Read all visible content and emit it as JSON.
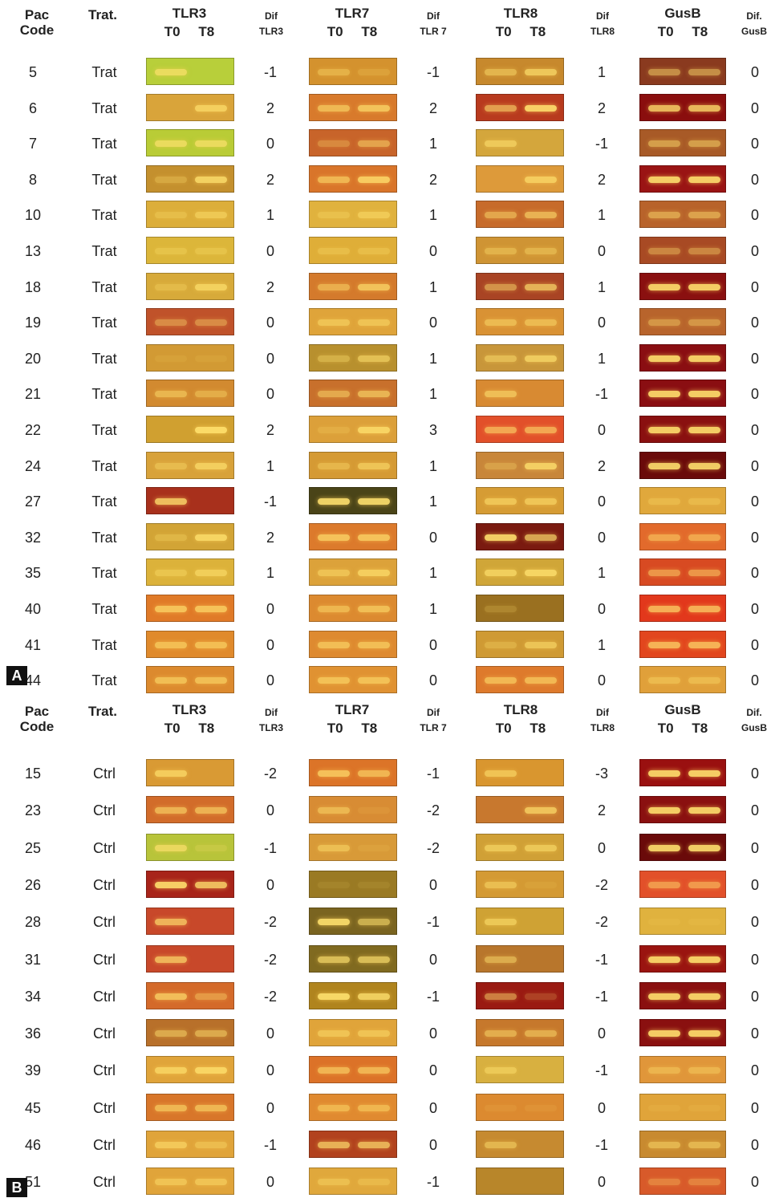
{
  "panels": [
    {
      "label": "A",
      "headers": {
        "pac": "Pac",
        "code": "Code",
        "trat": "Trat.",
        "genes": [
          "TLR3",
          "TLR7",
          "TLR8",
          "GusB"
        ],
        "t0": "T0",
        "t8": "T8",
        "difs": [
          {
            "top": "Dif",
            "sub": "TLR3"
          },
          {
            "top": "Dif",
            "sub": "TLR 7"
          },
          {
            "top": "Dif",
            "sub": "TLR8"
          },
          {
            "top": "Dif.",
            "sub": "GusB"
          }
        ]
      },
      "rows": [
        {
          "code": "5",
          "trat": "Trat",
          "dif": [
            "-1",
            "-1",
            "1",
            "0"
          ],
          "bg": [
            "#b8cf3a",
            "#d4922e",
            "#c7892d",
            "#8a3a1f"
          ],
          "t0": [
            0.7,
            0.4,
            0.5,
            0.5
          ],
          "t8": [
            0.0,
            0.2,
            0.7,
            0.5
          ]
        },
        {
          "code": "6",
          "trat": "Trat",
          "dif": [
            "2",
            "2",
            "2",
            "0"
          ],
          "bg": [
            "#d9a43a",
            "#d87a2c",
            "#b83a1e",
            "#8a0e0e"
          ],
          "t0": [
            0.0,
            0.6,
            0.6,
            0.8
          ],
          "t8": [
            0.7,
            0.7,
            0.9,
            0.8
          ]
        },
        {
          "code": "7",
          "trat": "Trat",
          "dif": [
            "0",
            "1",
            "-1",
            "0"
          ],
          "bg": [
            "#b9cc36",
            "#c8642a",
            "#d4a63c",
            "#a85a27"
          ],
          "t0": [
            0.7,
            0.3,
            0.6,
            0.5
          ],
          "t8": [
            0.7,
            0.5,
            0.0,
            0.5
          ]
        },
        {
          "code": "8",
          "trat": "Trat",
          "dif": [
            "2",
            "2",
            "2",
            "0"
          ],
          "bg": [
            "#c4902e",
            "#d9752a",
            "#dd9a3a",
            "#9a1414"
          ],
          "t0": [
            0.3,
            0.6,
            0.0,
            0.9
          ],
          "t8": [
            0.8,
            0.8,
            0.7,
            0.9
          ]
        },
        {
          "code": "10",
          "trat": "Trat",
          "dif": [
            "1",
            "1",
            "1",
            "0"
          ],
          "bg": [
            "#dcae3a",
            "#e0b23e",
            "#c76b2b",
            "#b8632b"
          ],
          "t0": [
            0.3,
            0.3,
            0.5,
            0.5
          ],
          "t8": [
            0.5,
            0.5,
            0.6,
            0.5
          ]
        },
        {
          "code": "13",
          "trat": "Trat",
          "dif": [
            "0",
            "0",
            "0",
            "0"
          ],
          "bg": [
            "#dcb63a",
            "#dfae38",
            "#cf9434",
            "#a84a24"
          ],
          "t0": [
            0.3,
            0.3,
            0.4,
            0.4
          ],
          "t8": [
            0.3,
            0.3,
            0.4,
            0.4
          ]
        },
        {
          "code": "18",
          "trat": "Trat",
          "dif": [
            "2",
            "1",
            "1",
            "0"
          ],
          "bg": [
            "#d7aa3a",
            "#d47a2c",
            "#a94424",
            "#8a1010"
          ],
          "t0": [
            0.3,
            0.5,
            0.5,
            0.9
          ],
          "t8": [
            0.7,
            0.7,
            0.7,
            0.9
          ]
        },
        {
          "code": "19",
          "trat": "Trat",
          "dif": [
            "0",
            "0",
            "0",
            "0"
          ],
          "bg": [
            "#c0522a",
            "#dfa43a",
            "#d99234",
            "#b8642c"
          ],
          "t0": [
            0.4,
            0.5,
            0.5,
            0.4
          ],
          "t8": [
            0.4,
            0.5,
            0.5,
            0.4
          ]
        },
        {
          "code": "20",
          "trat": "Trat",
          "dif": [
            "0",
            "1",
            "1",
            "0"
          ],
          "bg": [
            "#d29a34",
            "#b8902e",
            "#c8963a",
            "#8a0e12"
          ],
          "t0": [
            0.1,
            0.4,
            0.5,
            0.9
          ],
          "t8": [
            0.1,
            0.6,
            0.7,
            0.9
          ]
        },
        {
          "code": "21",
          "trat": "Trat",
          "dif": [
            "0",
            "1",
            "-1",
            "0"
          ],
          "bg": [
            "#d28a30",
            "#c8702c",
            "#d88a32",
            "#8a0e12"
          ],
          "t0": [
            0.5,
            0.5,
            0.6,
            0.9
          ],
          "t8": [
            0.4,
            0.6,
            0.0,
            0.9
          ]
        },
        {
          "code": "22",
          "trat": "Trat",
          "dif": [
            "2",
            "3",
            "0",
            "0"
          ],
          "bg": [
            "#d0a030",
            "#dca03a",
            "#e2502a",
            "#8a1010"
          ],
          "t0": [
            0.0,
            0.2,
            0.6,
            0.9
          ],
          "t8": [
            0.9,
            0.8,
            0.6,
            0.9
          ]
        },
        {
          "code": "24",
          "trat": "Trat",
          "dif": [
            "1",
            "1",
            "2",
            "0"
          ],
          "bg": [
            "#d8a23a",
            "#d59a34",
            "#c8863a",
            "#6a0a0a"
          ],
          "t0": [
            0.4,
            0.4,
            0.3,
            0.9
          ],
          "t8": [
            0.7,
            0.6,
            0.8,
            0.9
          ]
        },
        {
          "code": "27",
          "trat": "Trat",
          "dif": [
            "-1",
            "1",
            "0",
            "0"
          ],
          "bg": [
            "#a8301c",
            "#4a4418",
            "#d69c34",
            "#e0a83c"
          ],
          "t0": [
            0.8,
            0.9,
            0.6,
            0.3
          ],
          "t8": [
            0.0,
            0.9,
            0.6,
            0.3
          ]
        },
        {
          "code": "32",
          "trat": "Trat",
          "dif": [
            "2",
            "0",
            "0",
            "0"
          ],
          "bg": [
            "#d2a436",
            "#dc7a2c",
            "#7a1a10",
            "#e26a2c"
          ],
          "t0": [
            0.3,
            0.7,
            0.9,
            0.5
          ],
          "t8": [
            0.8,
            0.7,
            0.7,
            0.5
          ]
        },
        {
          "code": "35",
          "trat": "Trat",
          "dif": [
            "1",
            "1",
            "1",
            "0"
          ],
          "bg": [
            "#dcb23a",
            "#dca23a",
            "#d0a638",
            "#d84a22"
          ],
          "t0": [
            0.4,
            0.5,
            0.7,
            0.5
          ],
          "t8": [
            0.6,
            0.7,
            0.8,
            0.5
          ]
        },
        {
          "code": "40",
          "trat": "Trat",
          "dif": [
            "0",
            "1",
            "0",
            "0"
          ],
          "bg": [
            "#e07a28",
            "#dc8a30",
            "#9a7020",
            "#e2381c"
          ],
          "t0": [
            0.7,
            0.5,
            0.2,
            0.7
          ],
          "t8": [
            0.7,
            0.6,
            0.0,
            0.7
          ]
        },
        {
          "code": "41",
          "trat": "Trat",
          "dif": [
            "0",
            "0",
            "1",
            "0"
          ],
          "bg": [
            "#e08a2c",
            "#de8a30",
            "#cf9a34",
            "#e2461e"
          ],
          "t0": [
            0.6,
            0.6,
            0.3,
            0.7
          ],
          "t8": [
            0.6,
            0.6,
            0.6,
            0.7
          ]
        },
        {
          "code": "44",
          "trat": "Trat",
          "dif": [
            "0",
            "0",
            "0",
            "0"
          ],
          "bg": [
            "#dc8a2e",
            "#e09232",
            "#de7a2c",
            "#e0a03a"
          ],
          "t0": [
            0.6,
            0.6,
            0.6,
            0.4
          ],
          "t8": [
            0.6,
            0.6,
            0.6,
            0.4
          ]
        }
      ]
    },
    {
      "label": "B",
      "headers": {
        "pac": "Pac",
        "code": "Code",
        "trat": "Trat.",
        "genes": [
          "TLR3",
          "TLR7",
          "TLR8",
          "GusB"
        ],
        "t0": "T0",
        "t8": "T8",
        "difs": [
          {
            "top": "Dif",
            "sub": "TLR3"
          },
          {
            "top": "Dif",
            "sub": "TLR 7"
          },
          {
            "top": "Dif",
            "sub": "TLR8"
          },
          {
            "top": "Dif.",
            "sub": "GusB"
          }
        ]
      },
      "rows": [
        {
          "code": "15",
          "trat": "Ctrl",
          "dif": [
            "-2",
            "-1",
            "-3",
            "0"
          ],
          "bg": [
            "#d99a34",
            "#dc7428",
            "#d9962f",
            "#9a1010"
          ],
          "t0": [
            0.7,
            0.7,
            0.6,
            0.9
          ],
          "t8": [
            0.0,
            0.6,
            0.0,
            0.9
          ]
        },
        {
          "code": "23",
          "trat": "Ctrl",
          "dif": [
            "0",
            "-2",
            "2",
            "0"
          ],
          "bg": [
            "#d26c2a",
            "#d88c34",
            "#c8782e",
            "#8a1010"
          ],
          "t0": [
            0.6,
            0.5,
            0.0,
            0.9
          ],
          "t8": [
            0.6,
            0.1,
            0.7,
            0.9
          ]
        },
        {
          "code": "25",
          "trat": "Ctrl",
          "dif": [
            "-1",
            "-2",
            "0",
            "0"
          ],
          "bg": [
            "#b8c43a",
            "#d89a38",
            "#d0a036",
            "#6a0a0a"
          ],
          "t0": [
            0.7,
            0.5,
            0.6,
            0.9
          ],
          "t8": [
            0.2,
            0.1,
            0.6,
            0.9
          ]
        },
        {
          "code": "26",
          "trat": "Ctrl",
          "dif": [
            "0",
            "0",
            "-2",
            "0"
          ],
          "bg": [
            "#a8241a",
            "#9a7a24",
            "#d49a34",
            "#e2502a"
          ],
          "t0": [
            0.9,
            0.1,
            0.5,
            0.5
          ],
          "t8": [
            0.8,
            0.1,
            0.1,
            0.5
          ]
        },
        {
          "code": "28",
          "trat": "Ctrl",
          "dif": [
            "-2",
            "-1",
            "-2",
            "0"
          ],
          "bg": [
            "#c8482a",
            "#7a6420",
            "#cfa234",
            "#e0b23e"
          ],
          "t0": [
            0.7,
            0.9,
            0.6,
            0.1
          ],
          "t8": [
            0.0,
            0.6,
            0.0,
            0.1
          ]
        },
        {
          "code": "31",
          "trat": "Ctrl",
          "dif": [
            "-2",
            "0",
            "-1",
            "0"
          ],
          "bg": [
            "#c8482a",
            "#806a20",
            "#b8762c",
            "#9a1410"
          ],
          "t0": [
            0.7,
            0.7,
            0.5,
            0.9
          ],
          "t8": [
            0.0,
            0.7,
            0.0,
            0.9
          ]
        },
        {
          "code": "34",
          "trat": "Ctrl",
          "dif": [
            "-2",
            "-1",
            "-1",
            "0"
          ],
          "bg": [
            "#d46a2a",
            "#b0841e",
            "#9a1a12",
            "#8a1010"
          ],
          "t0": [
            0.7,
            0.9,
            0.5,
            0.9
          ],
          "t8": [
            0.4,
            0.8,
            0.2,
            0.9
          ]
        },
        {
          "code": "36",
          "trat": "Ctrl",
          "dif": [
            "0",
            "0",
            "0",
            "0"
          ],
          "bg": [
            "#b8702a",
            "#e0a43a",
            "#c6782c",
            "#8a1010"
          ],
          "t0": [
            0.5,
            0.5,
            0.5,
            0.9
          ],
          "t8": [
            0.5,
            0.5,
            0.5,
            0.9
          ]
        },
        {
          "code": "39",
          "trat": "Ctrl",
          "dif": [
            "0",
            "0",
            "-1",
            "0"
          ],
          "bg": [
            "#e0a43a",
            "#dc7228",
            "#d8b040",
            "#e0963a"
          ],
          "t0": [
            0.7,
            0.6,
            0.5,
            0.4
          ],
          "t8": [
            0.8,
            0.6,
            0.0,
            0.4
          ]
        },
        {
          "code": "45",
          "trat": "Ctrl",
          "dif": [
            "0",
            "0",
            "0",
            "0"
          ],
          "bg": [
            "#d8762a",
            "#e08a30",
            "#dc8a30",
            "#e0a43a"
          ],
          "t0": [
            0.6,
            0.5,
            0.1,
            0.1
          ],
          "t8": [
            0.6,
            0.5,
            0.1,
            0.1
          ]
        },
        {
          "code": "46",
          "trat": "Ctrl",
          "dif": [
            "-1",
            "0",
            "-1",
            "0"
          ],
          "bg": [
            "#e0a43a",
            "#b2421e",
            "#c68a30",
            "#c88a30"
          ],
          "t0": [
            0.6,
            0.7,
            0.5,
            0.5
          ],
          "t8": [
            0.4,
            0.7,
            0.0,
            0.5
          ]
        },
        {
          "code": "51",
          "trat": "Ctrl",
          "dif": [
            "0",
            "-1",
            "0",
            "0"
          ],
          "bg": [
            "#e0a43a",
            "#e0a83c",
            "#b8862a",
            "#d85a2a"
          ],
          "t0": [
            0.5,
            0.4,
            0.0,
            0.3
          ],
          "t8": [
            0.5,
            0.3,
            0.0,
            0.3
          ]
        }
      ]
    }
  ]
}
